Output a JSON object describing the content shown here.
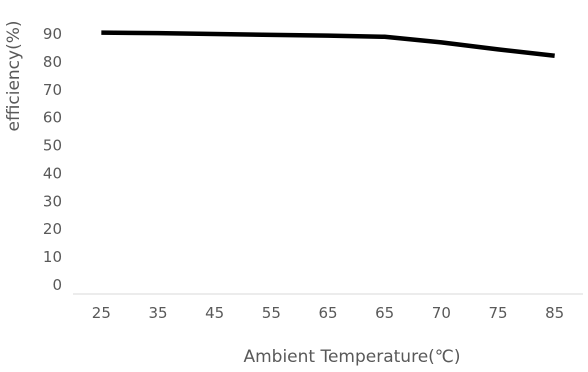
{
  "chart_data": {
    "type": "line",
    "title": "",
    "xlabel": "Ambient Temperature(℃)",
    "ylabel": "efficiency(%)",
    "categories": [
      "25",
      "35",
      "45",
      "55",
      "65",
      "65",
      "70",
      "75",
      "85"
    ],
    "series": [
      {
        "values": [
          90.5,
          90.3,
          90.0,
          89.7,
          89.4,
          89.0,
          87.0,
          84.5,
          82.2
        ]
      }
    ],
    "ylim": [
      0,
      90
    ],
    "yticks": [
      "0",
      "10",
      "20",
      "30",
      "40",
      "50",
      "60",
      "70",
      "80",
      "90"
    ],
    "grid": false,
    "legend": "none",
    "line_color": "#000000",
    "text_color": "#595959",
    "axis_color": "#d9d9d9"
  }
}
